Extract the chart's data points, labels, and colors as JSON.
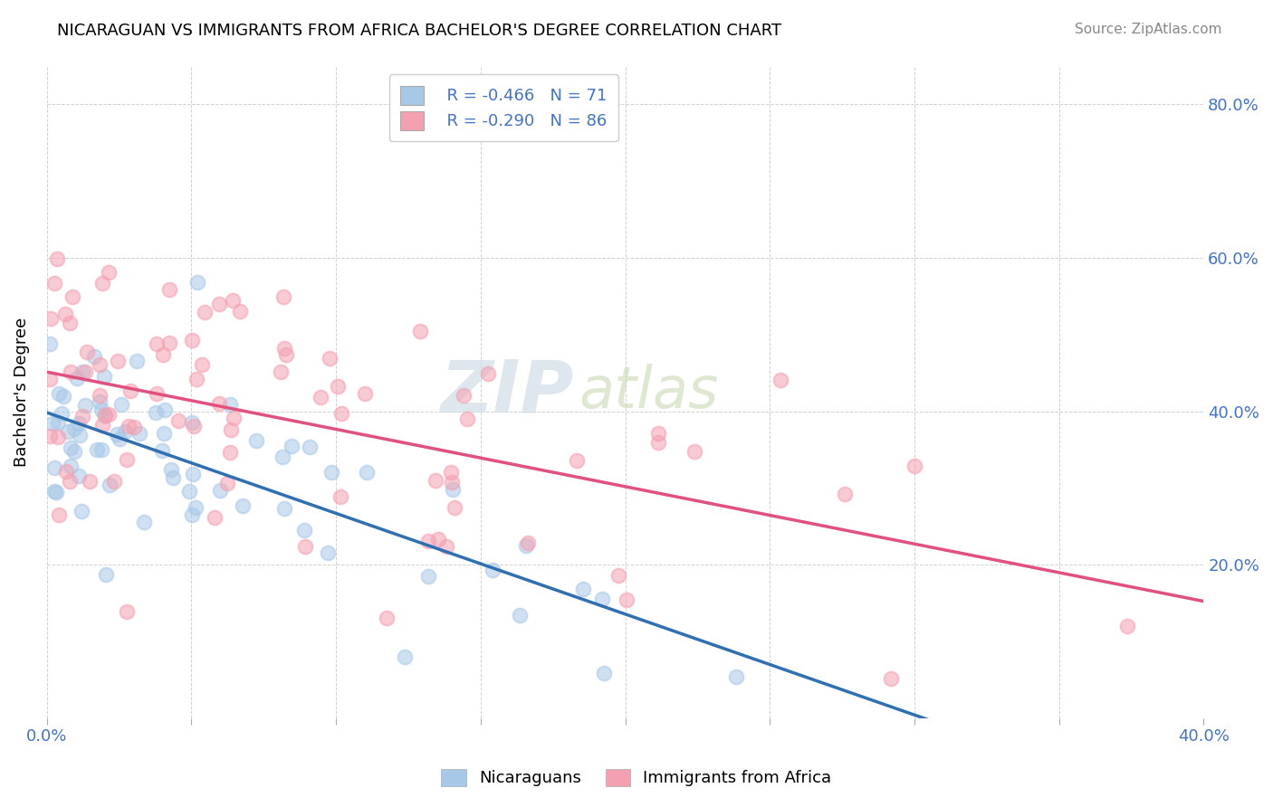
{
  "title": "NICARAGUAN VS IMMIGRANTS FROM AFRICA BACHELOR'S DEGREE CORRELATION CHART",
  "source": "Source: ZipAtlas.com",
  "ylabel_label": "Bachelor's Degree",
  "x_min": 0.0,
  "x_max": 0.4,
  "y_min": 0.0,
  "y_max": 0.85,
  "x_ticks": [
    0.0,
    0.05,
    0.1,
    0.15,
    0.2,
    0.25,
    0.3,
    0.35,
    0.4
  ],
  "y_ticks": [
    0.0,
    0.2,
    0.4,
    0.6,
    0.8
  ],
  "blue_color": "#a8c8e8",
  "pink_color": "#f4a0b0",
  "blue_line_color": "#3070b0",
  "pink_line_color": "#e05080",
  "legend_r1": "R = -0.466",
  "legend_n1": "N = 71",
  "legend_r2": "R = -0.290",
  "legend_n2": "N = 86",
  "blue_R": -0.466,
  "blue_N": 71,
  "pink_R": -0.29,
  "pink_N": 86,
  "seed": 42,
  "legend_label_blue": "Nicaraguans",
  "legend_label_pink": "Immigrants from Africa",
  "tick_color": "#4472c4",
  "grid_color": "#cccccc"
}
